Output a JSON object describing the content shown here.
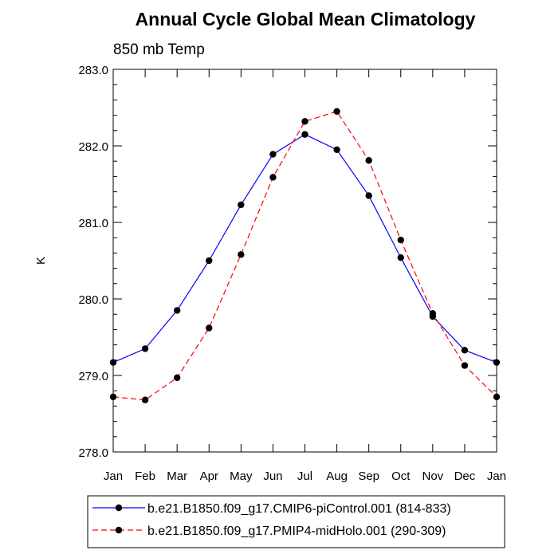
{
  "chart_data": {
    "type": "line",
    "title": "Annual Cycle Global Mean Climatology",
    "subtitle": "850 mb Temp",
    "xlabel": "",
    "ylabel": "K",
    "categories": [
      "Jan",
      "Feb",
      "Mar",
      "Apr",
      "May",
      "Jun",
      "Jul",
      "Aug",
      "Sep",
      "Oct",
      "Nov",
      "Dec",
      "Jan"
    ],
    "ylim": [
      278.0,
      283.0
    ],
    "yticks": [
      "278.0",
      "279.0",
      "280.0",
      "281.0",
      "282.0",
      "283.0"
    ],
    "grid": false,
    "legend_position": "bottom",
    "series": [
      {
        "name": "b.e21.B1850.f09_g17.CMIP6-piControl.001 (814-833)",
        "color": "#0000ff",
        "dash": "solid",
        "values": [
          279.17,
          279.35,
          279.85,
          280.5,
          281.23,
          281.89,
          282.15,
          281.95,
          281.35,
          280.54,
          279.77,
          279.33,
          279.17
        ]
      },
      {
        "name": "b.e21.B1850.f09_g17.PMIP4-midHolo.001 (290-309)",
        "color": "#ff0000",
        "dash": "dashed",
        "values": [
          278.72,
          278.68,
          278.97,
          279.62,
          280.58,
          281.59,
          282.32,
          282.45,
          281.81,
          280.77,
          279.81,
          279.13,
          278.72
        ]
      }
    ]
  }
}
